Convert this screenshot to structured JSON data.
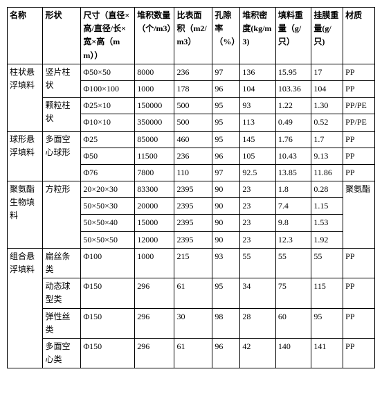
{
  "headers": {
    "name": "名称",
    "shape": "形状",
    "dim": "尺寸（直径×高/直径/长×宽×高（mm））",
    "pack": "堆积数量（个/m3）",
    "surf": "比表面积（m2/m3）",
    "por": "孔隙率（%）",
    "dens": "堆积密度(kg/m3)",
    "fill": "填料重量（g/只）",
    "film": "挂膜重量(g/只)",
    "mat": "材质"
  },
  "groups": [
    {
      "name": "柱状悬浮填料",
      "shapes": [
        {
          "shape": "竖片柱状",
          "rows": [
            {
              "dim": "Φ50×50",
              "pack": "8000",
              "surf": "236",
              "por": "97",
              "dens": "136",
              "fill": "15.95",
              "film": "17",
              "mat": "PP"
            },
            {
              "dim": "Φ100×100",
              "pack": "1000",
              "surf": "178",
              "por": "96",
              "dens": "104",
              "fill": "103.36",
              "film": "104",
              "mat": "PP"
            }
          ]
        },
        {
          "shape": "颗粒柱状",
          "rows": [
            {
              "dim": "Φ25×10",
              "pack": "150000",
              "surf": "500",
              "por": "95",
              "dens": "93",
              "fill": "1.22",
              "film": "1.30",
              "mat": "PP/PE"
            },
            {
              "dim": "Φ10×10",
              "pack": "350000",
              "surf": "500",
              "por": "95",
              "dens": "113",
              "fill": "0.49",
              "film": "0.52",
              "mat": "PP/PE"
            }
          ]
        }
      ]
    },
    {
      "name": "球形悬浮填料",
      "shapes": [
        {
          "shape": "多面空心球形",
          "rows": [
            {
              "dim": "Φ25",
              "pack": "85000",
              "surf": "460",
              "por": "95",
              "dens": "145",
              "fill": "1.76",
              "film": "1.7",
              "mat": "PP"
            },
            {
              "dim": "Φ50",
              "pack": "11500",
              "surf": "236",
              "por": "96",
              "dens": "105",
              "fill": "10.43",
              "film": "9.13",
              "mat": "PP"
            },
            {
              "dim": "Φ76",
              "pack": "7800",
              "surf": "110",
              "por": "97",
              "dens": "92.5",
              "fill": "13.85",
              "film": "11.86",
              "mat": "PP"
            }
          ]
        }
      ]
    },
    {
      "name": "聚氨酯生物填料",
      "mat": "聚氨酯",
      "shapes": [
        {
          "shape": "方粒形",
          "rows": [
            {
              "dim": "20×20×30",
              "pack": "83300",
              "surf": "2395",
              "por": "90",
              "dens": "23",
              "fill": "1.8",
              "film": "0.28"
            },
            {
              "dim": "50×50×30",
              "pack": "20000",
              "surf": "2395",
              "por": "90",
              "dens": "23",
              "fill": "7.4",
              "film": "1.15"
            },
            {
              "dim": "50×50×40",
              "pack": "15000",
              "surf": "2395",
              "por": "90",
              "dens": "23",
              "fill": "9.8",
              "film": "1.53"
            },
            {
              "dim": "50×50×50",
              "pack": "12000",
              "surf": "2395",
              "por": "90",
              "dens": "23",
              "fill": "12.3",
              "film": "1.92"
            }
          ]
        }
      ]
    },
    {
      "name": "组合悬浮填料",
      "shapes": [
        {
          "shape": "扁丝条类",
          "rows": [
            {
              "dim": "Φ100",
              "pack": "1000",
              "surf": "215",
              "por": "93",
              "dens": "55",
              "fill": "55",
              "film": "55",
              "mat": "PP"
            }
          ]
        },
        {
          "shape": "动态球型类",
          "rows": [
            {
              "dim": "Φ150",
              "pack": "296",
              "surf": "61",
              "por": "95",
              "dens": "34",
              "fill": "75",
              "film": "115",
              "mat": "PP"
            }
          ]
        },
        {
          "shape": "弹性丝类",
          "rows": [
            {
              "dim": "Φ150",
              "pack": "296",
              "surf": "30",
              "por": "98",
              "dens": "28",
              "fill": "60",
              "film": "95",
              "mat": "PP"
            }
          ]
        },
        {
          "shape": "多面空心类",
          "rows": [
            {
              "dim": "Φ150",
              "pack": "296",
              "surf": "61",
              "por": "96",
              "dens": "42",
              "fill": "140",
              "film": "141",
              "mat": "PP"
            }
          ]
        }
      ]
    }
  ]
}
